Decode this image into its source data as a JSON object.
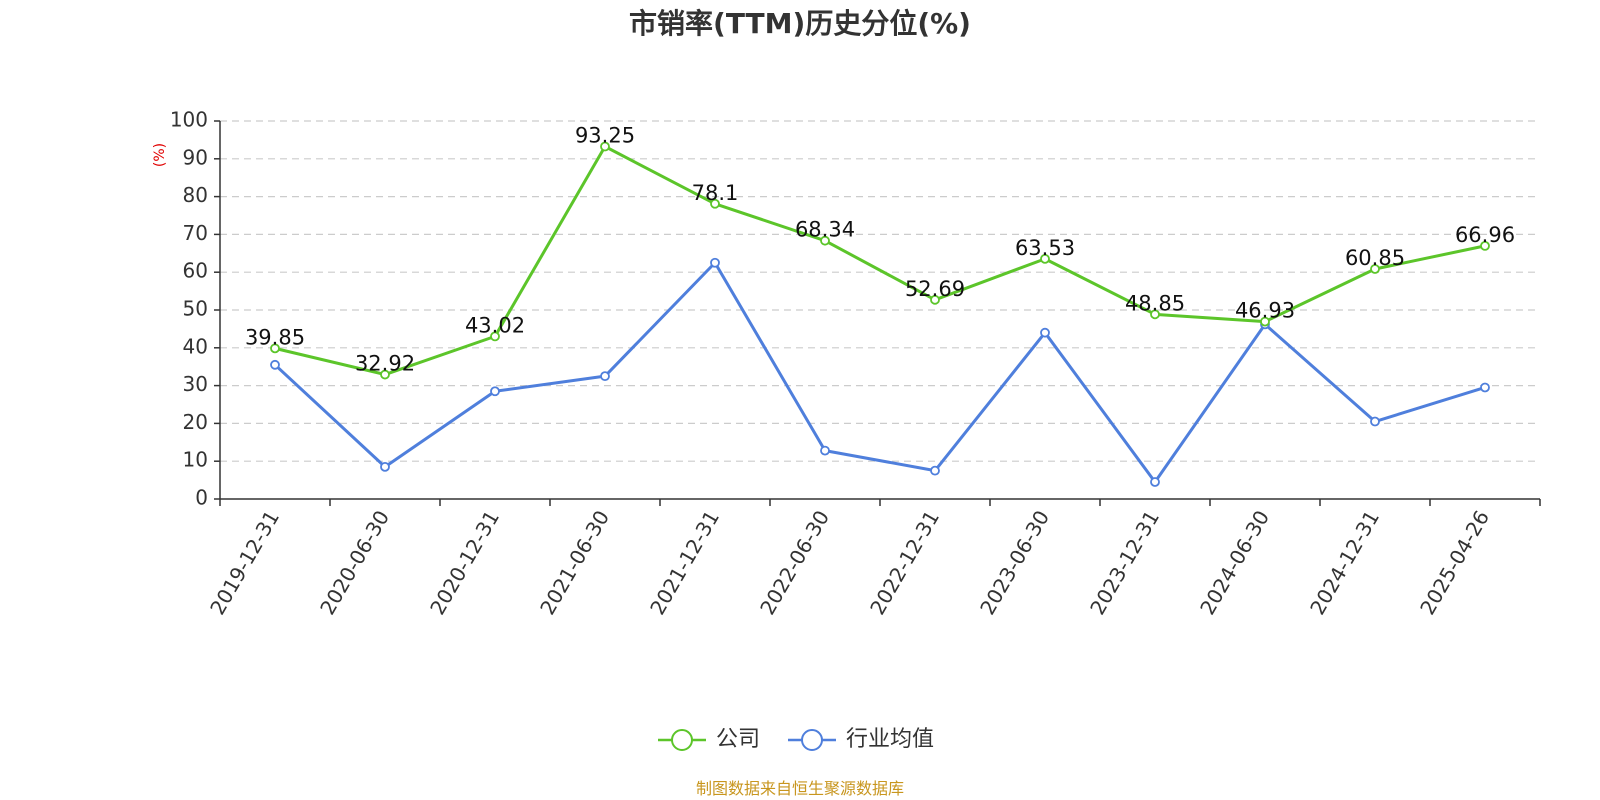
{
  "chart_data": {
    "type": "line",
    "title": "市销率(TTM)历史分位(%)",
    "ylabel": "(%)",
    "xlabel": "",
    "ylim": [
      0,
      100
    ],
    "yticks": [
      0,
      10,
      20,
      30,
      40,
      50,
      60,
      70,
      80,
      90,
      100
    ],
    "grid": true,
    "legend_position": "bottom",
    "categories": [
      "2019-12-31",
      "2020-06-30",
      "2020-12-31",
      "2021-06-30",
      "2021-12-31",
      "2022-06-30",
      "2022-12-31",
      "2023-06-30",
      "2023-12-31",
      "2024-06-30",
      "2024-12-31",
      "2025-04-26"
    ],
    "series": [
      {
        "name": "公司",
        "color": "#5cc52a",
        "show_labels": true,
        "labels": [
          "39.85",
          "32.92",
          "43.02",
          "93.25",
          "78.1",
          "68.34",
          "52.69",
          "63.53",
          "48.85",
          "46.93",
          "60.85",
          "66.96"
        ],
        "values": [
          39.85,
          32.92,
          43.02,
          93.25,
          78.1,
          68.34,
          52.69,
          63.53,
          48.85,
          46.93,
          60.85,
          66.96
        ]
      },
      {
        "name": "行业均值",
        "color": "#4f7fdc",
        "show_labels": false,
        "values": [
          35.5,
          8.5,
          28.5,
          32.5,
          62.5,
          12.8,
          7.5,
          44.0,
          4.5,
          46.2,
          20.5,
          29.5
        ]
      }
    ],
    "source": "制图数据来自恒生聚源数据库",
    "axis_label_color": "#e00000",
    "source_color": "#c8961e"
  }
}
